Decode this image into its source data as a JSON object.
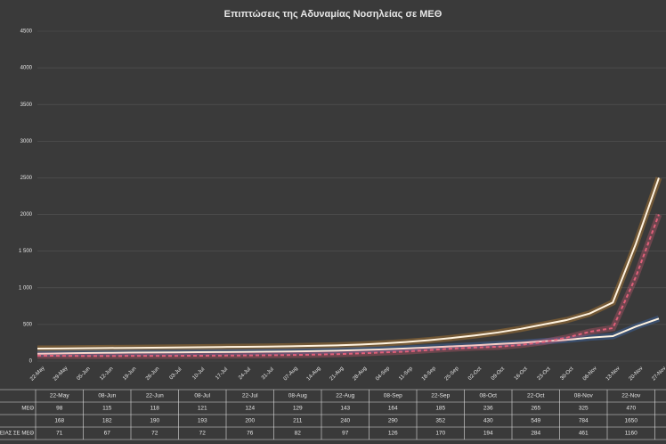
{
  "chart_data": {
    "type": "line",
    "title": "Επιπτώσεις της Αδυναμίας Νοσηλείας σε ΜΕΘ",
    "categories": [
      "22-May",
      "29-May",
      "05-Jun",
      "12-Jun",
      "19-Jun",
      "26-Jun",
      "03-Jul",
      "10-Jul",
      "17-Jul",
      "24-Jul",
      "31-Jul",
      "07-Aug",
      "14-Aug",
      "21-Aug",
      "28-Aug",
      "04-Sep",
      "11-Sep",
      "18-Sep",
      "25-Sep",
      "02-Oct",
      "09-Oct",
      "16-Oct",
      "23-Oct",
      "30-Oct",
      "06-Nov",
      "13-Nov",
      "20-Nov",
      "27-Nov"
    ],
    "series": [
      {
        "color": "#f5a030",
        "dash": false,
        "values": [
          170,
          172,
          175,
          178,
          180,
          183,
          186,
          189,
          192,
          195,
          198,
          202,
          208,
          215,
          225,
          240,
          260,
          285,
          315,
          350,
          390,
          440,
          500,
          560,
          650,
          800,
          1600,
          2500
        ]
      },
      {
        "color": "#3d7fe0",
        "dash": false,
        "values": [
          100,
          105,
          110,
          112,
          115,
          117,
          119,
          121,
          123,
          125,
          127,
          130,
          135,
          142,
          150,
          160,
          172,
          185,
          200,
          215,
          232,
          250,
          270,
          290,
          320,
          340,
          470,
          580
        ]
      },
      {
        "color": "#e0607a",
        "dash": true,
        "values": [
          75,
          72,
          70,
          70,
          71,
          72,
          72,
          73,
          75,
          77,
          80,
          83,
          88,
          95,
          105,
          118,
          130,
          150,
          170,
          185,
          195,
          220,
          260,
          320,
          400,
          450,
          1150,
          2000
        ]
      }
    ],
    "ylim": [
      0,
      4500
    ],
    "yticks": [
      0,
      500,
      {
        "value": 1000,
        "label": "1 000"
      },
      {
        "value": 1500,
        "label": "1 500"
      },
      2000,
      2500,
      3000,
      3500,
      4000,
      4500
    ],
    "grid": true
  },
  "table": {
    "columns": [
      "22-May",
      "08-Jun",
      "22-Jun",
      "08-Jul",
      "22-Jul",
      "08-Aug",
      "22-Aug",
      "08-Sep",
      "22-Sep",
      "08-Oct",
      "22-Oct",
      "08-Nov",
      "22-Nov"
    ],
    "rows": [
      {
        "label": "ΜΕΘ",
        "values": [
          98,
          115,
          118,
          121,
          124,
          129,
          143,
          164,
          185,
          236,
          265,
          325,
          470
        ]
      },
      {
        "values": [
          168,
          182,
          190,
          193,
          200,
          211,
          240,
          290,
          352,
          430,
          549,
          784,
          1650
        ]
      },
      {
        "label": "ΛΕΙΑΣ ΣΕ ΜΕΘ",
        "values": [
          71,
          67,
          72,
          72,
          76,
          82,
          97,
          126,
          170,
          194,
          284,
          461,
          1160
        ]
      }
    ]
  }
}
